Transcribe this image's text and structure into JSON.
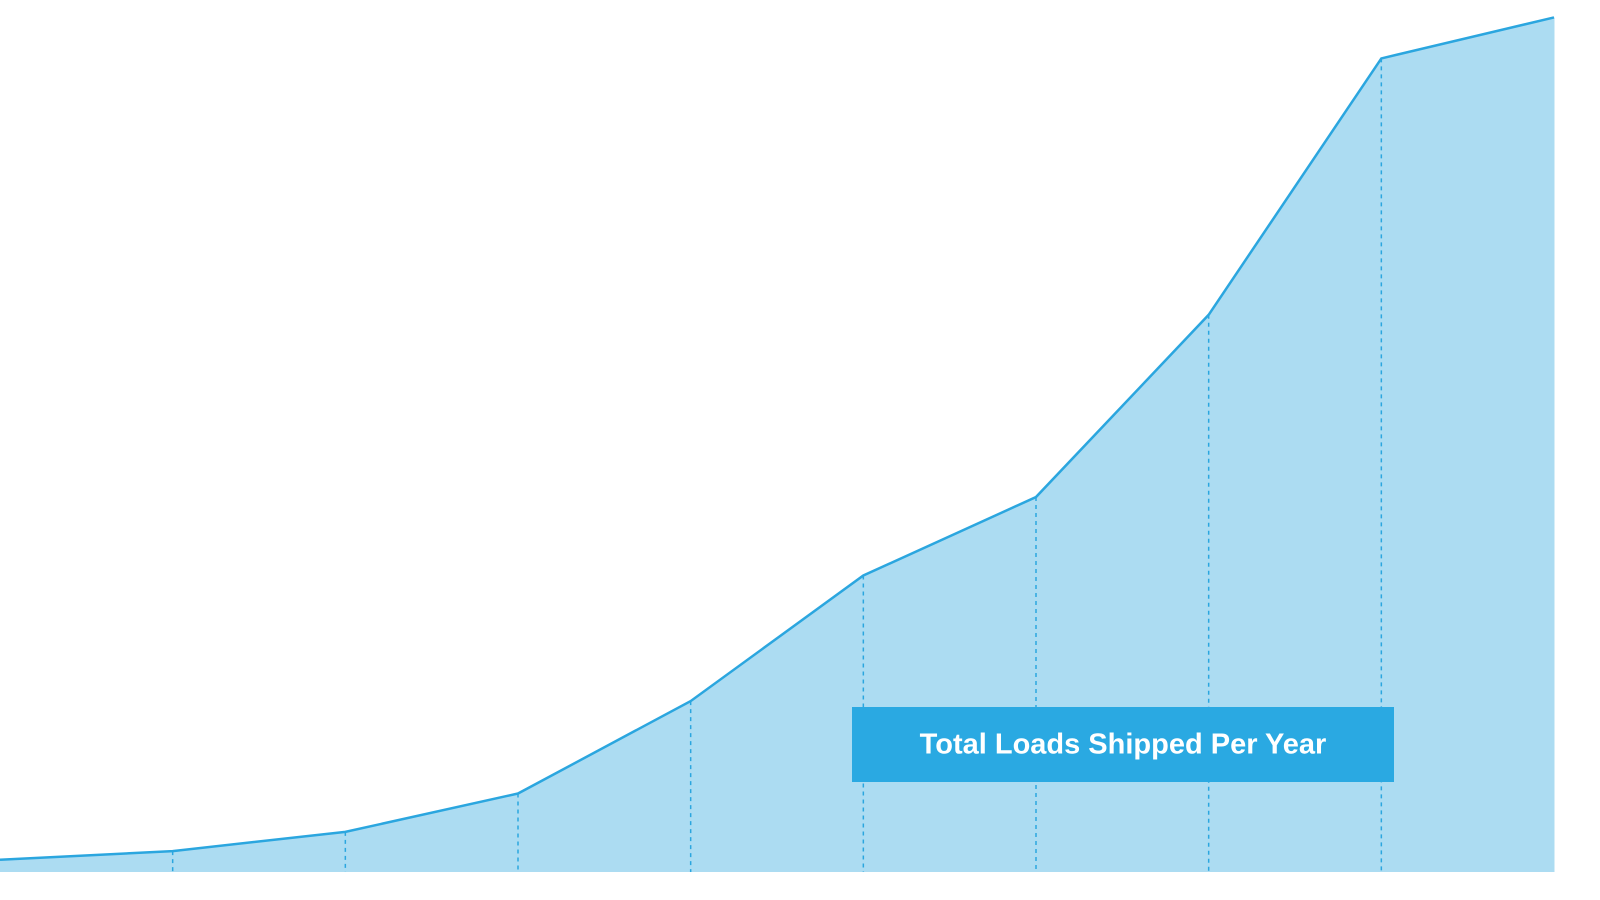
{
  "chart_data": {
    "type": "area",
    "label": "Total Loads Shipped Per Year",
    "categories": [
      null,
      null,
      null,
      null,
      null,
      null,
      null,
      null,
      null,
      null
    ],
    "values": [
      1.4,
      2.4,
      4.6,
      9.0,
      19.6,
      34.0,
      43.0,
      63.9,
      93.3,
      98.0
    ],
    "ylim": [
      0,
      100
    ],
    "color": "#2ba6df",
    "fill": "#acdcf2",
    "label_color": "#2aa9e2",
    "drop_lines": true
  }
}
